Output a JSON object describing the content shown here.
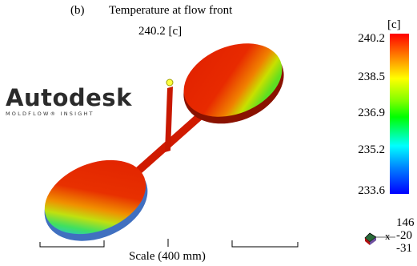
{
  "figure": {
    "panel_label": "(b)",
    "title": "Temperature at flow front",
    "current_value": "240.2 [c]"
  },
  "logo": {
    "word": "Autodesk",
    "sub": "MOLDFLOW® INSIGHT"
  },
  "legend": {
    "unit": "[c]",
    "ticks": [
      "240.2",
      "238.5",
      "236.9",
      "235.2",
      "233.6"
    ],
    "gradient_colors": [
      "#ff0000",
      "#ff8000",
      "#ffff00",
      "#00ff00",
      "#00ffff",
      "#0000ff"
    ]
  },
  "axis_triad": {
    "values": [
      "146",
      "-20",
      "-31"
    ],
    "x_label": "x"
  },
  "scale": {
    "label": "Scale (400 mm)"
  }
}
